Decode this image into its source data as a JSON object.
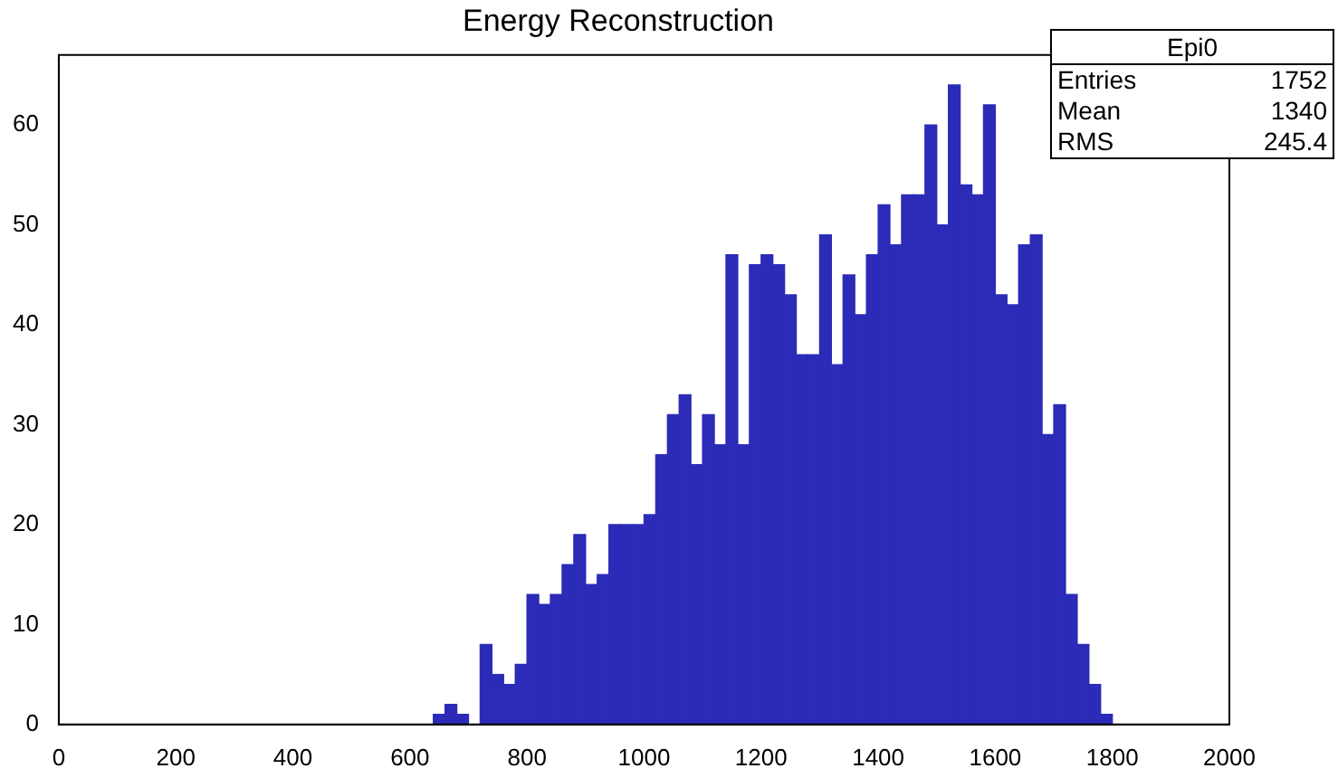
{
  "chart_data": {
    "type": "histogram",
    "title": "Energy Reconstruction",
    "bins": [
      0,
      20,
      40,
      60,
      80,
      100,
      120,
      140,
      160,
      180,
      200,
      220,
      240,
      260,
      280,
      300,
      320,
      340,
      360,
      380,
      400,
      420,
      440,
      460,
      480,
      500,
      520,
      540,
      560,
      580,
      600,
      620,
      640,
      660,
      680,
      700,
      720,
      740,
      760,
      780,
      800,
      820,
      840,
      860,
      880,
      900,
      920,
      940,
      960,
      980,
      1000,
      1020,
      1040,
      1060,
      1080,
      1100,
      1120,
      1140,
      1160,
      1180,
      1200,
      1220,
      1240,
      1260,
      1280,
      1300,
      1320,
      1340,
      1360,
      1380,
      1400,
      1420,
      1440,
      1460,
      1480,
      1500,
      1520,
      1540,
      1560,
      1580,
      1600,
      1620,
      1640,
      1660,
      1680,
      1700,
      1720,
      1740,
      1760,
      1780,
      1800,
      1820,
      1840,
      1860,
      1880,
      1900,
      1920,
      1940,
      1960,
      1980,
      2000
    ],
    "values": [
      0,
      0,
      0,
      0,
      0,
      0,
      0,
      0,
      0,
      0,
      0,
      0,
      0,
      0,
      0,
      0,
      0,
      0,
      0,
      0,
      0,
      0,
      0,
      0,
      0,
      0,
      0,
      0,
      0,
      0,
      0,
      0,
      1,
      2,
      1,
      0,
      8,
      5,
      4,
      6,
      13,
      12,
      13,
      16,
      19,
      14,
      15,
      20,
      20,
      20,
      21,
      27,
      31,
      33,
      26,
      31,
      28,
      47,
      28,
      46,
      47,
      46,
      43,
      37,
      37,
      49,
      36,
      45,
      41,
      47,
      52,
      48,
      53,
      53,
      60,
      50,
      64,
      54,
      53,
      62,
      43,
      42,
      48,
      49,
      29,
      32,
      13,
      8,
      4,
      1,
      0,
      0,
      0,
      0,
      0,
      0,
      0,
      0,
      0,
      0
    ],
    "color": "#2b2bb8",
    "xlim": [
      0,
      2000
    ],
    "xticks": [
      0,
      200,
      400,
      600,
      800,
      1000,
      1200,
      1400,
      1600,
      1800,
      2000
    ],
    "ylim": [
      0,
      67
    ],
    "yticks": [
      0,
      10,
      20,
      30,
      40,
      50,
      60
    ],
    "grid": false,
    "legend": false,
    "annotations": [
      "Epi0",
      "Entries",
      "1752",
      "Mean",
      "1340",
      "RMS",
      "245.4"
    ]
  }
}
